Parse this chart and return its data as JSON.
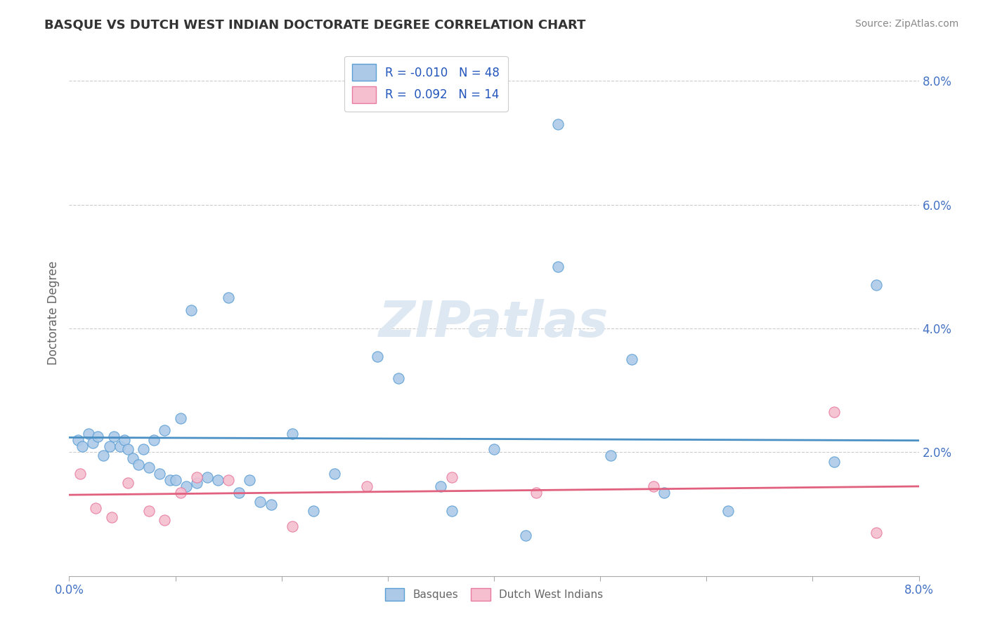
{
  "title": "BASQUE VS DUTCH WEST INDIAN DOCTORATE DEGREE CORRELATION CHART",
  "source": "Source: ZipAtlas.com",
  "ylabel": "Doctorate Degree",
  "xlim": [
    0.0,
    8.0
  ],
  "ylim": [
    0.0,
    8.5
  ],
  "basque_color": "#adc9e8",
  "basque_edge": "#5b9fd4",
  "dutch_color": "#f5bfd0",
  "dutch_edge": "#e87aa0",
  "line_basque_color": "#4a90c4",
  "line_dutch_color": "#e0607e",
  "watermark_color": "#dde8f3",
  "title_color": "#333333",
  "tick_color": "#4472c4",
  "source_color": "#888888",
  "ylabel_color": "#666666",
  "grid_color": "#cccccc",
  "legend_label_color": "#2255bb",
  "bottom_label_color": "#666666",
  "basques_x": [
    0.08,
    0.12,
    0.18,
    0.22,
    0.27,
    0.32,
    0.38,
    0.42,
    0.48,
    0.52,
    0.55,
    0.6,
    0.65,
    0.7,
    0.75,
    0.8,
    0.85,
    0.9,
    0.95,
    1.0,
    1.05,
    1.1,
    1.15,
    1.2,
    1.3,
    1.4,
    1.5,
    1.6,
    1.7,
    1.8,
    1.9,
    2.1,
    2.3,
    2.5,
    2.9,
    3.1,
    3.5,
    4.0,
    4.3,
    4.6,
    5.1,
    5.3,
    5.6,
    6.2,
    7.2,
    7.6,
    3.6,
    4.6
  ],
  "basques_y": [
    2.2,
    2.1,
    2.3,
    2.15,
    2.25,
    1.95,
    2.1,
    2.25,
    2.1,
    2.2,
    2.05,
    1.9,
    1.8,
    2.05,
    1.75,
    2.2,
    1.65,
    2.35,
    1.55,
    1.55,
    2.55,
    1.45,
    4.3,
    1.5,
    1.6,
    1.55,
    4.5,
    1.35,
    1.55,
    1.2,
    1.15,
    2.3,
    1.05,
    1.65,
    3.55,
    3.2,
    1.45,
    2.05,
    0.65,
    7.3,
    1.95,
    3.5,
    1.35,
    1.05,
    1.85,
    4.7,
    1.05,
    5.0
  ],
  "dutch_x": [
    0.1,
    0.25,
    0.4,
    0.55,
    0.75,
    0.9,
    1.05,
    1.2,
    1.5,
    2.1,
    2.8,
    3.6,
    4.4,
    5.5,
    7.2,
    7.6
  ],
  "dutch_y": [
    1.65,
    1.1,
    0.95,
    1.5,
    1.05,
    0.9,
    1.35,
    1.6,
    1.55,
    0.8,
    1.45,
    1.6,
    1.35,
    1.45,
    2.65,
    0.7
  ]
}
